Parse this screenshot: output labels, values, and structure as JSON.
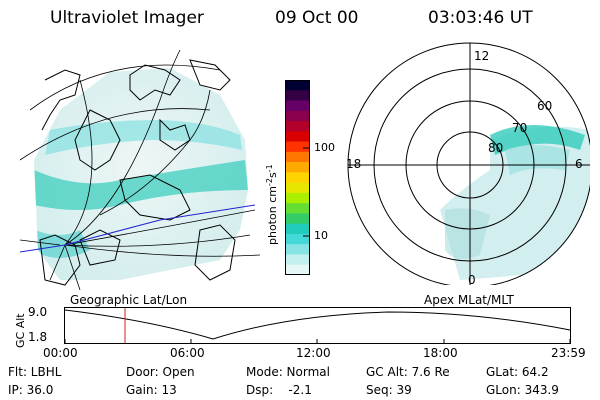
{
  "header": {
    "title": "Ultraviolet Imager",
    "date": "09 Oct 00",
    "time": "03:03:46 UT"
  },
  "colorbar": {
    "unit": "photon cm",
    "unit_exp1": "-2",
    "unit_mid": "s",
    "unit_exp2": "-1",
    "tick_100": "100",
    "tick_10": "10",
    "colors": [
      "#000033",
      "#330044",
      "#660066",
      "#8b004d",
      "#b3002a",
      "#d90000",
      "#ff3300",
      "#ff7700",
      "#ffaa00",
      "#ffd400",
      "#e6e600",
      "#aaee00",
      "#66dd33",
      "#33cc66",
      "#22ccbb",
      "#44d8d8",
      "#88e4e4",
      "#c4f0f0",
      "#e6f7f7"
    ]
  },
  "geo_panel": {
    "caption": "Geographic Lat/Lon"
  },
  "polar_panel": {
    "caption": "Apex MLat/MLT",
    "mlt_top": "12",
    "mlt_bottom": "0",
    "mlt_left": "18",
    "mlt_right": "6",
    "lat_60": "60",
    "lat_70": "70",
    "lat_80": "80"
  },
  "altitude_plot": {
    "ylabel": "GC Alt",
    "y_high": "9.0",
    "y_low": "1.8",
    "x_ticks": [
      "00:00",
      "06:00",
      "12:00",
      "18:00",
      "23:59"
    ]
  },
  "info": {
    "row1": {
      "flt": "Flt: LBHL",
      "door": "Door: Open",
      "mode": "Mode: Normal",
      "gcalt": "GC Alt: 7.6 Re",
      "glat": "GLat:  64.2"
    },
    "row2": {
      "ip": "IP: 36.0",
      "gain": "Gain: 13",
      "dsp": "Dsp:    -2.1",
      "seq": "Seq: 39",
      "glon": "GLon: 343.9"
    }
  }
}
